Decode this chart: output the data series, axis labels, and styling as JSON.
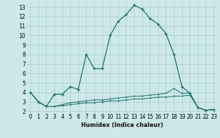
{
  "title": "",
  "xlabel": "Humidex (Indice chaleur)",
  "ylabel": "",
  "bg_color": "#cce8e8",
  "grid_color": "#aacccc",
  "line_color": "#1a6b6b",
  "x": [
    0,
    1,
    2,
    3,
    4,
    5,
    6,
    7,
    8,
    9,
    10,
    11,
    12,
    13,
    14,
    15,
    16,
    17,
    18,
    19,
    20,
    21,
    22,
    23
  ],
  "y_main": [
    4.0,
    3.0,
    2.5,
    3.8,
    3.8,
    4.6,
    4.3,
    8.0,
    6.5,
    6.5,
    10.0,
    11.5,
    12.2,
    13.2,
    12.8,
    11.8,
    11.2,
    10.2,
    8.0,
    4.6,
    3.9,
    2.4,
    2.1,
    2.2
  ],
  "y_mid": [
    4.0,
    3.0,
    2.5,
    2.5,
    2.7,
    2.9,
    3.0,
    3.1,
    3.2,
    3.2,
    3.3,
    3.4,
    3.5,
    3.6,
    3.6,
    3.7,
    3.8,
    3.9,
    4.4,
    3.9,
    3.9,
    2.4,
    2.1,
    2.2
  ],
  "y_low": [
    4.0,
    3.0,
    2.5,
    2.5,
    2.6,
    2.7,
    2.8,
    2.9,
    2.9,
    3.0,
    3.1,
    3.1,
    3.2,
    3.3,
    3.3,
    3.4,
    3.5,
    3.5,
    3.6,
    3.6,
    3.7,
    2.4,
    2.1,
    2.2
  ],
  "xlim": [
    -0.5,
    23.5
  ],
  "ylim": [
    1.8,
    13.6
  ],
  "yticks": [
    2,
    3,
    4,
    5,
    6,
    7,
    8,
    9,
    10,
    11,
    12,
    13
  ],
  "xticks": [
    0,
    1,
    2,
    3,
    4,
    5,
    6,
    7,
    8,
    9,
    10,
    11,
    12,
    13,
    14,
    15,
    16,
    17,
    18,
    19,
    20,
    21,
    22,
    23
  ],
  "xlabel_fontsize": 6.0,
  "tick_fontsize": 5.5
}
